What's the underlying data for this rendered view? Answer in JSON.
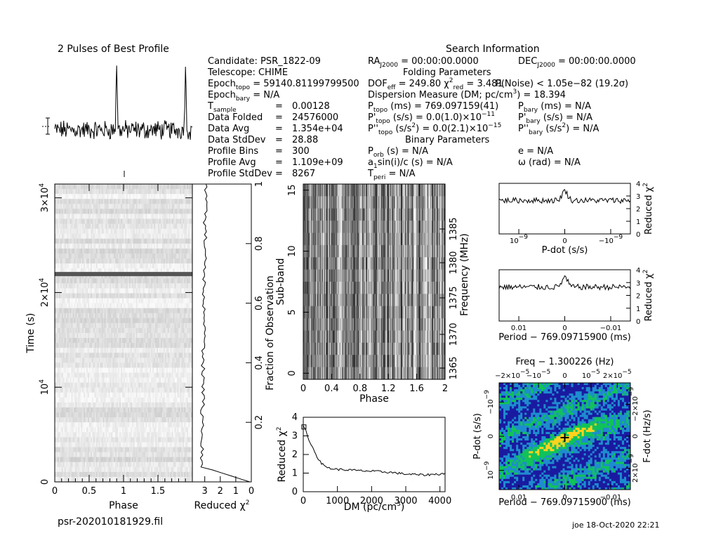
{
  "title_profile": "2 Pulses of Best Profile",
  "title_search": "Search Information",
  "filename": "psr-202010181929.fil",
  "footer": "joe 18-Oct-2020 22:21",
  "left_info": {
    "candidate": "Candidate:  PSR_1822-09",
    "telescope": "Telescope:  CHIME",
    "epoch_topo_label": "Epoch",
    "epoch_topo_sub": "topo",
    "epoch_topo_val": " = 59140.81199799500",
    "epoch_bary_label": "Epoch",
    "epoch_bary_sub": "bary",
    "epoch_bary_val": " = N/A",
    "rows": [
      {
        "label": "T",
        "sub": "sample",
        "value": "0.00128"
      },
      {
        "label": "Data Folded",
        "sub": "",
        "value": "24576000"
      },
      {
        "label": "Data Avg",
        "sub": "",
        "value": "1.354e+04"
      },
      {
        "label": "Data StdDev",
        "sub": "",
        "value": "28.88"
      },
      {
        "label": "Profile Bins",
        "sub": "",
        "value": "300"
      },
      {
        "label": "Profile Avg",
        "sub": "",
        "value": "1.109e+09"
      },
      {
        "label": "Profile StdDev",
        "sub": "",
        "value": "8267"
      }
    ]
  },
  "search": {
    "ra_label": "RA",
    "ra_sub": "J2000",
    "ra_val": " = 00:00:00.0000",
    "dec_label": "DEC",
    "dec_sub": "J2000",
    "dec_val": " = 00:00:00.0000",
    "folding_header": "Folding Parameters",
    "dof_label": "DOF",
    "dof_sub": "eff",
    "dof_val": " = 249.80  ",
    "chi_label": "χ",
    "chi_sup": "2",
    "chi_sub": "red",
    "chi_val": " = 3.481",
    "pnoise": "P(Noise) < 1.05e−82   (19.2σ)",
    "dm": "Dispersion Measure (DM; pc/cm",
    "dm_sup": "3",
    "dm_tail": ") = 18.394",
    "ptopo_label": "P",
    "ptopo_sub": "topo",
    "ptopo_val": " (ms)  =  769.097159(41)",
    "pdtopo_label": "P'",
    "pdtopo_sub": "topo",
    "pdtopo_val": " (s/s) = 0.0(1.0)×10",
    "pdtopo_exp": "−11",
    "pddtopo_label": "P''",
    "pddtopo_sub": "topo",
    "pddtopo_val": " (s/s",
    "pddtopo_sup": "2",
    "pddtopo_tail": ") = 0.0(2.1)×10",
    "pddtopo_exp": "−15",
    "pbary_label": "P",
    "pbary_sub": "bary",
    "pbary_val": " (ms) = N/A",
    "pdbary_label": "P'",
    "pdbary_sub": "bary",
    "pdbary_val": " (s/s) = N/A",
    "pddbary_label": "P''",
    "pddbary_sub": "bary",
    "pddbary_val": " (s/s",
    "pddbary_sup": "2",
    "pddbary_tail": ") = N/A",
    "binary_header": "Binary Parameters",
    "porb_label": "P",
    "porb_sub": "orb",
    "porb_val": " (s) = N/A",
    "a1_label": "a",
    "a1_sub": "1",
    "a1_val": "sin(i)/c (s) = N/A",
    "tperi_label": "T",
    "tperi_sub": "peri",
    "tperi_val": " = N/A",
    "e_val": "e = N/A",
    "omega_val": "ω (rad) = N/A"
  },
  "colors": {
    "line": "#000000",
    "heat_low": "#1a1aa0",
    "heat_mid": "#11c25a",
    "heat_high": "#ffd21e"
  },
  "chart_data": [
    {
      "type": "line",
      "name": "profile",
      "title": "2 Pulses of Best Profile",
      "x_range": [
        0,
        2
      ],
      "peaks_at_phase": [
        0.9,
        1.9
      ],
      "bins_per_pulse": 300
    },
    {
      "type": "heatmap",
      "name": "time-phase",
      "xlabel": "Phase",
      "ylabel": "Time (s)",
      "xlim": [
        0,
        2
      ],
      "ylim": [
        0,
        31457
      ],
      "x_ticks": [
        "0",
        "0.5",
        "1",
        "1.5"
      ],
      "y_ticks": [
        {
          "v": 0,
          "label": "0"
        },
        {
          "v": 10000,
          "label": "10",
          "exp": "4"
        },
        {
          "v": 20000,
          "label": "2×10",
          "exp": "4"
        },
        {
          "v": 30000,
          "label": "3×10",
          "exp": "4"
        }
      ],
      "bright_stripe_time_s": 21950,
      "colormap": "gray"
    },
    {
      "type": "line",
      "name": "reduced-chi2-vs-time",
      "xlabel": "Reduced χ",
      "xlabel_sup": "2",
      "ylabel": "Fraction of Observation",
      "xlim": [
        3.8,
        0
      ],
      "ylim": [
        0,
        1
      ],
      "x_ticks": [
        "3",
        "2",
        "1",
        "0"
      ],
      "y_ticks": [
        "0.2",
        "0.4",
        "0.6",
        "0.8",
        "1"
      ]
    },
    {
      "type": "heatmap",
      "name": "subband-phase",
      "xlabel": "Phase",
      "ylabel": "Sub-band",
      "y2label": "Frequency (MHz)",
      "xlim": [
        0,
        2
      ],
      "ylim": [
        -0.5,
        15.5
      ],
      "x_ticks": [
        "0",
        "0.4",
        "0.8",
        "1.2",
        "1.6",
        "2"
      ],
      "y_ticks": [
        "0",
        "5",
        "10",
        "15"
      ],
      "y2_ticks": [
        "1365",
        "1370",
        "1375",
        "1380",
        "1385"
      ],
      "colormap": "gray"
    },
    {
      "type": "line",
      "name": "chi2-vs-dm",
      "xlabel": "DM (pc/cm",
      "xlabel_sup": "3",
      "xlabel_tail": ")",
      "ylabel": "Reduced χ",
      "ylabel_sup": "2",
      "xlim": [
        0,
        4150
      ],
      "ylim": [
        0,
        4
      ],
      "x_ticks": [
        "0",
        "1000",
        "2000",
        "3000",
        "4000"
      ],
      "y_ticks": [
        "0",
        "1",
        "2",
        "3",
        "4"
      ],
      "x": [
        0,
        50,
        100,
        150,
        200,
        300,
        400,
        500,
        600,
        800,
        1000,
        1500,
        2000,
        2500,
        3000,
        3500,
        4000,
        4150
      ],
      "y": [
        3.5,
        3.4,
        3.1,
        2.9,
        2.6,
        2.3,
        1.9,
        1.6,
        1.4,
        1.25,
        1.2,
        1.15,
        1.1,
        1.05,
        0.95,
        0.9,
        0.95,
        1.0
      ]
    },
    {
      "type": "line",
      "name": "chi2-vs-pdot",
      "xlabel": "P-dot (s/s)",
      "ylabel": "Reduced χ",
      "ylabel_sup": "2",
      "ylim": [
        0,
        4
      ],
      "x_ticks": [
        "10",
        "0",
        "−10"
      ],
      "x_tick_exps": [
        "−9",
        "",
        "−9"
      ],
      "y_ticks": [
        "0",
        "1",
        "2",
        "3",
        "4"
      ],
      "peak_reduced_chi2": 3.5
    },
    {
      "type": "line",
      "name": "chi2-vs-period",
      "xlabel": "Period − 769.09715900 (ms)",
      "ylabel": "Reduced χ",
      "ylabel_sup": "2",
      "ylim": [
        0,
        4
      ],
      "x_ticks": [
        "0.01",
        "0",
        "−0.01"
      ],
      "y_ticks": [
        "0",
        "1",
        "2",
        "3",
        "4"
      ],
      "peak_reduced_chi2": 3.5
    },
    {
      "type": "heatmap",
      "name": "period-pdot",
      "title": "Freq − 1.300226 (Hz)",
      "xlabel": "Period − 769.09715900 (ms)",
      "ylabel": "P-dot (s/s)",
      "y2label": "F-dot (Hz/s)",
      "x_ticks": [
        "0.01",
        "0",
        "−0.01"
      ],
      "top_ticks": [
        "−2×10",
        "−10",
        "0",
        "10",
        "2×10"
      ],
      "top_tick_exps": [
        "−5",
        "−5",
        "",
        "−5",
        "−5"
      ],
      "y_ticks": [
        "10",
        "0",
        "−10"
      ],
      "y_tick_exps": [
        "−9",
        "",
        "−9"
      ],
      "y2_ticks": [
        "−2×10",
        "0",
        "2×10"
      ],
      "y2_tick_exps": [
        "−9",
        "",
        "−9"
      ],
      "colormap": "rainbow",
      "best_marker": [
        0,
        0
      ]
    }
  ]
}
